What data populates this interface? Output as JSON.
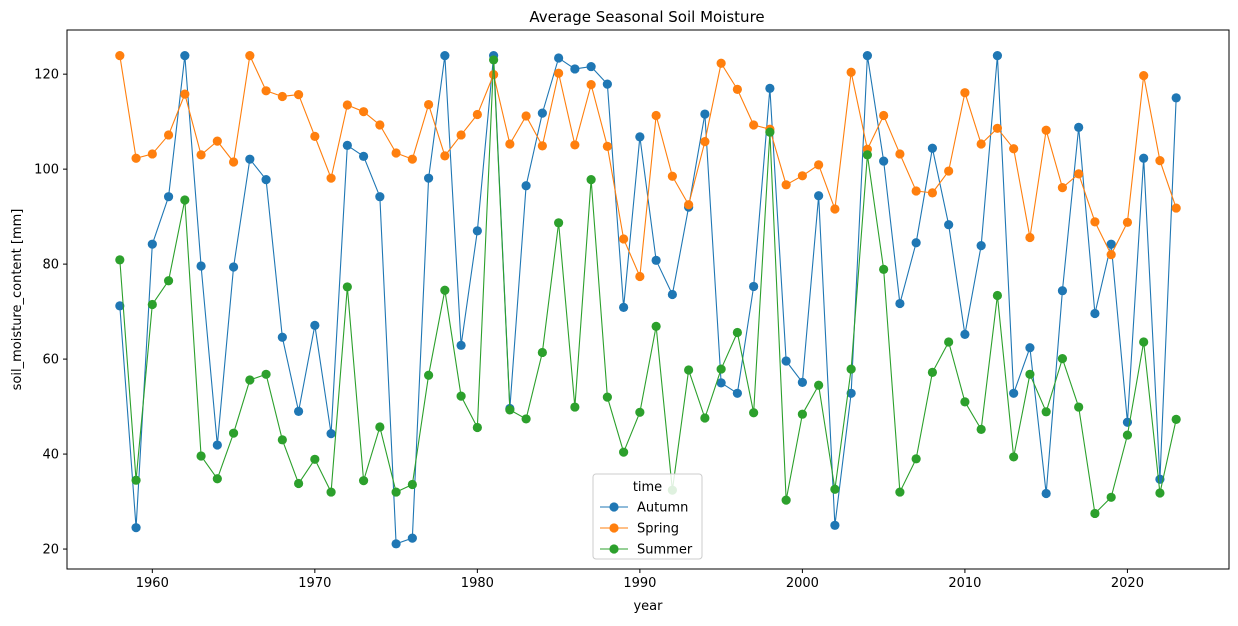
{
  "chart_data": {
    "type": "line",
    "title": "Average Seasonal Soil Moisture",
    "xlabel": "year",
    "ylabel": "soil_moisture_content [mm]",
    "xlim": [
      1954.75,
      2026.25
    ],
    "ylim": [
      15.8,
      129.3
    ],
    "xticks": [
      1960,
      1970,
      1980,
      1990,
      2000,
      2010,
      2020
    ],
    "yticks": [
      20,
      40,
      60,
      80,
      100,
      120
    ],
    "grid": false,
    "markers": true,
    "legend": {
      "title": "time",
      "placement": "bottom-center"
    },
    "x": [
      1958,
      1959,
      1960,
      1961,
      1962,
      1963,
      1964,
      1965,
      1966,
      1967,
      1968,
      1969,
      1970,
      1971,
      1972,
      1973,
      1974,
      1975,
      1976,
      1977,
      1978,
      1979,
      1980,
      1981,
      1982,
      1983,
      1984,
      1985,
      1986,
      1987,
      1988,
      1989,
      1990,
      1991,
      1992,
      1993,
      1994,
      1995,
      1996,
      1997,
      1998,
      1999,
      2000,
      2001,
      2002,
      2003,
      2004,
      2005,
      2006,
      2007,
      2008,
      2009,
      2010,
      2011,
      2012,
      2013,
      2014,
      2015,
      2016,
      2017,
      2018,
      2019,
      2020,
      2021,
      2022,
      2023
    ],
    "series": [
      {
        "name": "Autumn",
        "color": "#1f77b4",
        "values": [
          71.2,
          24.5,
          84.2,
          94.2,
          123.9,
          79.6,
          41.9,
          79.4,
          102.1,
          97.8,
          64.6,
          49.0,
          67.1,
          44.3,
          105.0,
          102.7,
          94.2,
          21.1,
          22.3,
          98.1,
          123.9,
          62.9,
          87.0,
          123.9,
          49.6,
          96.5,
          111.8,
          123.4,
          121.1,
          121.6,
          117.9,
          70.9,
          106.8,
          80.8,
          73.6,
          92.0,
          111.6,
          55.0,
          52.8,
          75.3,
          117.0,
          59.6,
          55.1,
          94.4,
          25.0,
          52.8,
          123.9,
          101.7,
          71.7,
          84.5,
          104.4,
          88.3,
          65.2,
          83.9,
          123.9,
          52.8,
          62.4,
          31.7,
          74.4,
          108.8,
          69.6,
          84.2,
          46.7,
          102.3,
          34.7,
          115.0
        ]
      },
      {
        "name": "Spring",
        "color": "#ff7f0e",
        "values": [
          123.9,
          102.3,
          103.2,
          107.2,
          115.8,
          103.0,
          105.9,
          101.5,
          123.9,
          116.5,
          115.3,
          115.7,
          106.9,
          98.1,
          113.5,
          112.1,
          109.3,
          103.4,
          102.1,
          113.6,
          102.8,
          107.2,
          111.5,
          119.9,
          105.3,
          111.2,
          104.9,
          120.2,
          105.1,
          117.8,
          104.8,
          85.3,
          77.4,
          111.3,
          98.5,
          92.5,
          105.8,
          122.3,
          116.8,
          109.3,
          108.4,
          96.7,
          98.6,
          100.9,
          91.6,
          120.4,
          104.2,
          111.3,
          103.2,
          95.4,
          95.0,
          99.6,
          116.1,
          105.3,
          108.6,
          104.3,
          85.6,
          108.2,
          96.1,
          99.0,
          88.9,
          82.0,
          88.8,
          119.7,
          101.8,
          91.8
        ]
      },
      {
        "name": "Summer",
        "color": "#2ca02c",
        "values": [
          80.9,
          34.5,
          71.5,
          76.5,
          93.5,
          39.6,
          34.8,
          44.4,
          55.6,
          56.8,
          43.0,
          33.8,
          38.9,
          32.0,
          75.2,
          34.4,
          45.7,
          32.0,
          33.6,
          56.6,
          74.5,
          52.2,
          45.6,
          123.0,
          49.3,
          47.4,
          61.4,
          88.7,
          49.9,
          97.8,
          52.0,
          40.4,
          48.8,
          66.9,
          32.4,
          57.7,
          47.6,
          57.9,
          65.6,
          48.7,
          107.8,
          30.3,
          48.4,
          54.5,
          32.6,
          57.9,
          103.0,
          78.9,
          32.0,
          39.0,
          57.2,
          63.6,
          51.0,
          45.2,
          73.4,
          39.4,
          56.8,
          48.9,
          60.1,
          49.9,
          27.5,
          30.9,
          44.0,
          63.6,
          31.8,
          47.3
        ]
      }
    ]
  }
}
